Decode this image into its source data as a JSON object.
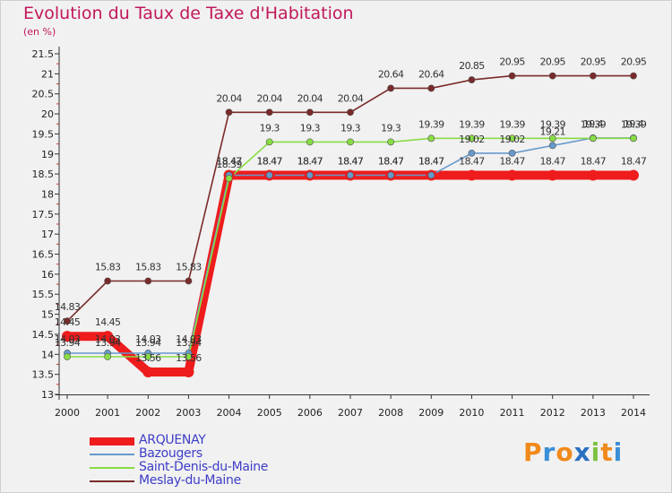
{
  "chart_data": {
    "type": "line",
    "title": "Evolution du Taux de Taxe d'Habitation",
    "ylabel": "(en %)",
    "xlabel": "",
    "x": [
      "2000",
      "2001",
      "2002",
      "2003",
      "2004",
      "2005",
      "2006",
      "2007",
      "2008",
      "2009",
      "2010",
      "2011",
      "2012",
      "2013",
      "2014"
    ],
    "ylim": [
      13,
      21.5
    ],
    "yticks": [
      "13",
      "13.5",
      "14",
      "14.5",
      "15",
      "15.5",
      "16",
      "16.5",
      "17",
      "17.5",
      "18",
      "18.5",
      "19",
      "19.5",
      "20",
      "20.5",
      "21",
      "21.5"
    ],
    "series": [
      {
        "name": "ARQUENAY",
        "color": "#ee1c1c",
        "values": [
          14.45,
          14.45,
          13.56,
          13.56,
          18.47,
          18.47,
          18.47,
          18.47,
          18.47,
          18.47,
          18.47,
          18.47,
          18.47,
          18.47,
          18.47
        ]
      },
      {
        "name": "Bazougers",
        "color": "#6699cc",
        "values": [
          14.03,
          14.03,
          14.03,
          14.03,
          18.47,
          18.47,
          18.47,
          18.47,
          18.47,
          18.47,
          19.02,
          19.02,
          19.21,
          19.4,
          19.4
        ]
      },
      {
        "name": "Saint-Denis-du-Maine",
        "color": "#88dd44",
        "values": [
          13.94,
          13.94,
          13.94,
          13.94,
          18.39,
          19.3,
          19.3,
          19.3,
          19.3,
          19.39,
          19.39,
          19.39,
          19.39,
          19.39,
          19.39
        ]
      },
      {
        "name": "Meslay-du-Maine",
        "color": "#7a2a2a",
        "values": [
          14.83,
          15.83,
          15.83,
          15.83,
          20.04,
          20.04,
          20.04,
          20.04,
          20.64,
          20.64,
          20.85,
          20.95,
          20.95,
          20.95,
          20.95
        ]
      }
    ],
    "grid": false,
    "legend": "bottom-left"
  },
  "logo": {
    "text": "Proxiti"
  }
}
